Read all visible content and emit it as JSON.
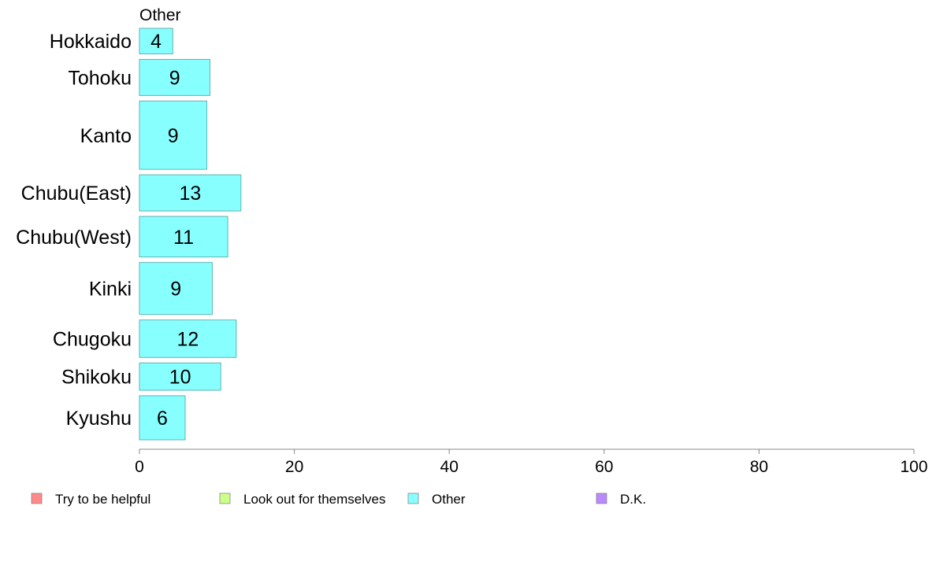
{
  "chart_data": {
    "type": "bar",
    "orientation": "horizontal",
    "panel_title": "Other",
    "categories": [
      "Hokkaido",
      "Tohoku",
      "Kanto",
      "Chubu(East)",
      "Chubu(West)",
      "Kinki",
      "Chugoku",
      "Shikoku",
      "Kyushu"
    ],
    "values": [
      4.3,
      9.1,
      8.7,
      13.1,
      11.4,
      9.4,
      12.5,
      10.5,
      5.9
    ],
    "value_labels": [
      "4",
      "9",
      "9",
      "13",
      "11",
      "9",
      "12",
      "10",
      "6"
    ],
    "relative_widths": [
      0.58,
      0.82,
      1.55,
      0.82,
      0.92,
      1.18,
      0.85,
      0.62,
      1.0
    ],
    "xlim": [
      0,
      100
    ],
    "xticks": [
      0,
      20,
      40,
      60,
      80,
      100
    ],
    "bar_color": "#88FFFF",
    "bar_edge_color": "#5fb3b3",
    "axis_color": "#888888",
    "legend": {
      "placement": "bottom",
      "items": [
        {
          "label": "Try to be helpful",
          "color": "#FF8888"
        },
        {
          "label": "Look out for themselves",
          "color": "#CCFF88"
        },
        {
          "label": "Other",
          "color": "#88FFFF"
        },
        {
          "label": "D.K.",
          "color": "#BB88FF"
        }
      ]
    }
  }
}
